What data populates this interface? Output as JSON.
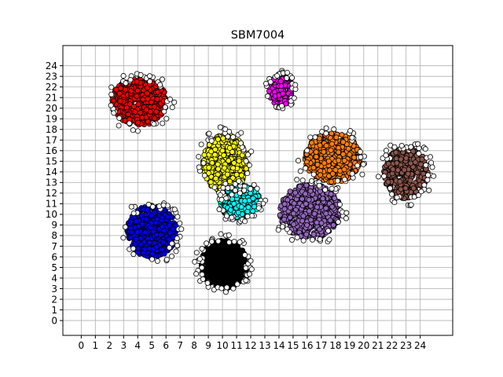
{
  "chart_data": {
    "type": "scatter",
    "title": "SBM7004",
    "xlabel": "",
    "ylabel": "",
    "xlim": [
      -1.3,
      26.3
    ],
    "ylim": [
      -1.4,
      25.9
    ],
    "x_ticks": [
      "0",
      "1",
      "2",
      "3",
      "4",
      "5",
      "6",
      "7",
      "8",
      "9",
      "10",
      "11",
      "12",
      "13",
      "14",
      "15",
      "16",
      "17",
      "18",
      "19",
      "20",
      "21",
      "22",
      "23",
      "24"
    ],
    "y_ticks": [
      "0",
      "1",
      "2",
      "3",
      "4",
      "5",
      "6",
      "7",
      "8",
      "9",
      "10",
      "11",
      "12",
      "13",
      "14",
      "15",
      "16",
      "17",
      "18",
      "19",
      "20",
      "21",
      "22",
      "23",
      "24"
    ],
    "grid": true,
    "legend": "none",
    "series": [
      {
        "color": "#ff0000",
        "cx": 4.1,
        "cy": 20.6,
        "rx": 2.0,
        "ry": 2.3,
        "n": 560
      },
      {
        "color": "#0000ff",
        "cx": 5.0,
        "cy": 8.4,
        "rx": 1.8,
        "ry": 2.5,
        "n": 520
      },
      {
        "color": "#ffff00",
        "cx": 10.2,
        "cy": 14.8,
        "rx": 1.6,
        "ry": 2.8,
        "n": 460
      },
      {
        "color": "#00ffff",
        "cx": 11.2,
        "cy": 11.2,
        "rx": 1.5,
        "ry": 1.6,
        "n": 330
      },
      {
        "color": "#000000",
        "cx": 10.1,
        "cy": 5.3,
        "rx": 1.7,
        "ry": 2.3,
        "n": 560
      },
      {
        "color": "#ff00ff",
        "cx": 14.1,
        "cy": 21.7,
        "rx": 0.9,
        "ry": 1.5,
        "n": 130
      },
      {
        "color": "#ff7f0e",
        "cx": 17.8,
        "cy": 15.3,
        "rx": 2.0,
        "ry": 2.4,
        "n": 520
      },
      {
        "color": "#9467bd",
        "cx": 16.2,
        "cy": 10.3,
        "rx": 2.2,
        "ry": 2.6,
        "n": 620
      },
      {
        "color": "#8c564b",
        "cx": 23.0,
        "cy": 13.9,
        "rx": 1.6,
        "ry": 2.5,
        "n": 360
      },
      {
        "color": "#ffffff",
        "cx": 12.0,
        "cy": 12.5,
        "rx": 7.0,
        "ry": 6.0,
        "n": 380,
        "outlier": true
      }
    ]
  }
}
